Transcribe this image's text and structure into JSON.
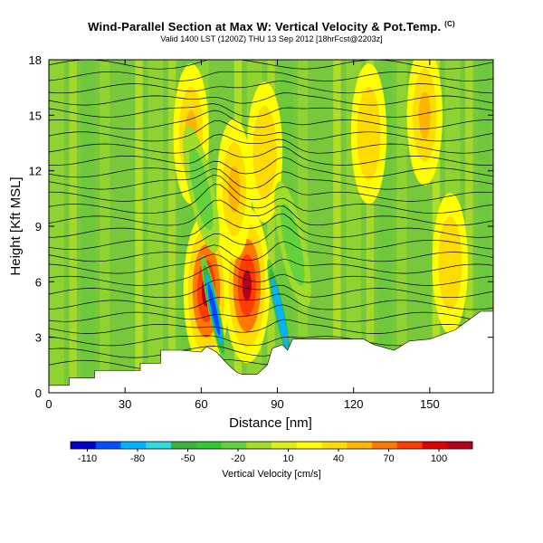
{
  "header": {
    "title": "Wind-Parallel Section at Max W: Vertical Velocity & Pot.Temp.",
    "copyright": "(C)",
    "subtitle": "Valid 1400 LST (1200Z) THU 13 Sep 2012 [18hrFcst@2203z]"
  },
  "chart_data": {
    "type": "heatmap",
    "xlabel": "Distance [nm]",
    "ylabel": "Height [Kft MSL]",
    "xlim": [
      0,
      175
    ],
    "ylim": [
      0,
      18
    ],
    "xticks": [
      "0",
      "30",
      "60",
      "90",
      "120",
      "150"
    ],
    "yticks": [
      "0",
      "3",
      "6",
      "9",
      "12",
      "15",
      "18"
    ],
    "colorbar": {
      "label": "Vertical Velocity [cm/s]",
      "ticks": [
        "-110",
        "-80",
        "-50",
        "-20",
        "10",
        "40",
        "70",
        "100"
      ],
      "range": [
        -120,
        120
      ],
      "colors": [
        "#0000c8",
        "#0050ff",
        "#00b4ff",
        "#32dcdc",
        "#3cb43c",
        "#32c832",
        "#64d23c",
        "#a0dc28",
        "#dcf014",
        "#ffff00",
        "#ffdc00",
        "#ffb400",
        "#ff7800",
        "#ff3c00",
        "#dc0000",
        "#b4001e"
      ]
    },
    "terrain": [
      [
        0,
        0.4
      ],
      [
        8,
        0.4
      ],
      [
        8,
        0.8
      ],
      [
        18,
        0.8
      ],
      [
        18,
        1.2
      ],
      [
        36,
        1.2
      ],
      [
        36,
        1.6
      ],
      [
        44,
        1.6
      ],
      [
        44,
        2.3
      ],
      [
        52,
        2.3
      ],
      [
        60,
        2.2
      ],
      [
        62,
        2.5
      ],
      [
        66,
        2.2
      ],
      [
        70,
        1.6
      ],
      [
        74,
        1.1
      ],
      [
        76,
        1.0
      ],
      [
        82,
        1.0
      ],
      [
        86,
        1.5
      ],
      [
        88,
        2.4
      ],
      [
        92,
        2.6
      ],
      [
        94,
        2.3
      ],
      [
        96,
        2.9
      ],
      [
        124,
        2.9
      ],
      [
        128,
        2.6
      ],
      [
        136,
        2.3
      ],
      [
        142,
        2.8
      ],
      [
        150,
        2.9
      ],
      [
        160,
        3.4
      ],
      [
        166,
        4.0
      ],
      [
        170,
        4.4
      ],
      [
        175,
        4.4
      ]
    ],
    "updrafts": [
      {
        "x": 62,
        "z": 5.5,
        "value": 110
      },
      {
        "x": 78,
        "z": 5.8,
        "value": 115
      },
      {
        "x": 56,
        "z": 14,
        "value": 45
      },
      {
        "x": 73,
        "z": 11,
        "value": 50
      },
      {
        "x": 85,
        "z": 13,
        "value": 40
      },
      {
        "x": 126,
        "z": 14,
        "value": 40
      },
      {
        "x": 148,
        "z": 15,
        "value": 45
      },
      {
        "x": 158,
        "z": 7,
        "value": 35
      }
    ],
    "downdrafts": [
      {
        "x": 65,
        "z": 4.5,
        "value": -100
      },
      {
        "x": 91,
        "z": 4.3,
        "value": -90
      },
      {
        "x": 60,
        "z": 11,
        "value": -25
      },
      {
        "x": 96,
        "z": 8,
        "value": -20
      }
    ]
  }
}
